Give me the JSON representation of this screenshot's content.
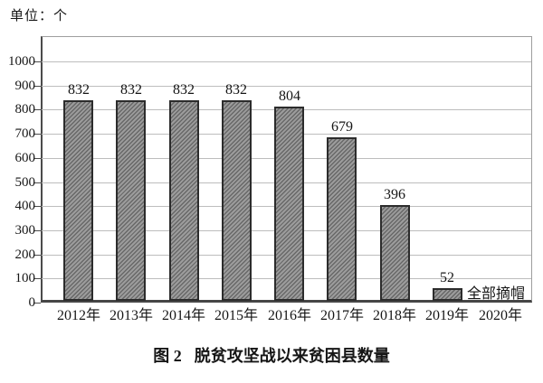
{
  "unit_label": "单位：个",
  "caption": {
    "prefix": "图 2",
    "title": "脱贫攻坚战以来贫困县数量"
  },
  "chart_data": {
    "type": "bar",
    "title": "图 2 脱贫攻坚战以来贫困县数量",
    "unit_label": "单位：个",
    "categories": [
      "2012年",
      "2013年",
      "2014年",
      "2015年",
      "2016年",
      "2017年",
      "2018年",
      "2019年",
      "2020年"
    ],
    "values": [
      832,
      832,
      832,
      832,
      804,
      679,
      396,
      52,
      0
    ],
    "annotation": {
      "text": "全部摘帽",
      "category": "2019年"
    },
    "xlabel": "",
    "ylabel": "",
    "ylim": [
      0,
      1000
    ],
    "yticks": [
      0,
      100,
      200,
      300,
      400,
      500,
      600,
      700,
      800,
      900,
      1000
    ],
    "grid": true,
    "legend": "none",
    "bar_style": {
      "fill": "#9c9c9c",
      "hatch": "diagonal-forward",
      "hatch_color": "#686868",
      "border": "#2c2c2c"
    },
    "grid_color": "#bdbdbd",
    "axis_color": "#4b4b4b"
  }
}
